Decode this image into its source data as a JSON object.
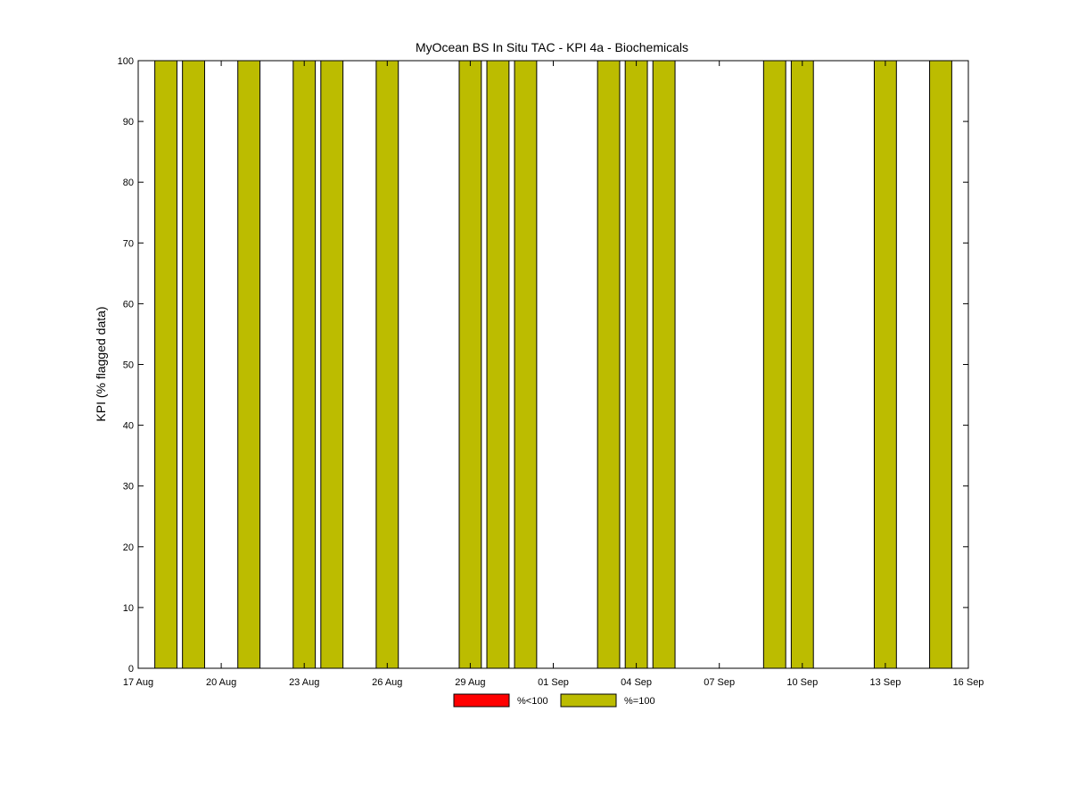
{
  "chart_data": {
    "type": "bar",
    "title": "MyOcean  BS In Situ TAC - KPI 4a - Biochemicals",
    "xlabel": "",
    "ylabel": "KPI (% flagged data)",
    "x_axis": {
      "range": [
        "2012-08-17",
        "2012-09-16"
      ],
      "tick_labels": [
        "17 Aug",
        "20 Aug",
        "23 Aug",
        "26 Aug",
        "29 Aug",
        "01 Sep",
        "04 Sep",
        "07 Sep",
        "10 Sep",
        "13 Sep",
        "16 Sep"
      ]
    },
    "ylim": [
      0,
      100
    ],
    "y_tick_labels": [
      "0",
      "10",
      "20",
      "30",
      "40",
      "50",
      "60",
      "70",
      "80",
      "90",
      "100"
    ],
    "grid": false,
    "legend_position": "bottom-center",
    "series": [
      {
        "name": "%<100",
        "color": "#ff0000",
        "points": []
      },
      {
        "name": "%=100",
        "color": "#bcbc00",
        "points": [
          {
            "date": "2012-08-18",
            "value": 100
          },
          {
            "date": "2012-08-19",
            "value": 100
          },
          {
            "date": "2012-08-21",
            "value": 100
          },
          {
            "date": "2012-08-23",
            "value": 100
          },
          {
            "date": "2012-08-24",
            "value": 100
          },
          {
            "date": "2012-08-26",
            "value": 100
          },
          {
            "date": "2012-08-29",
            "value": 100
          },
          {
            "date": "2012-08-30",
            "value": 100
          },
          {
            "date": "2012-08-31",
            "value": 100
          },
          {
            "date": "2012-09-03",
            "value": 100
          },
          {
            "date": "2012-09-04",
            "value": 100
          },
          {
            "date": "2012-09-05",
            "value": 100
          },
          {
            "date": "2012-09-09",
            "value": 100
          },
          {
            "date": "2012-09-10",
            "value": 100
          },
          {
            "date": "2012-09-13",
            "value": 100
          },
          {
            "date": "2012-09-15",
            "value": 100
          }
        ]
      }
    ]
  }
}
